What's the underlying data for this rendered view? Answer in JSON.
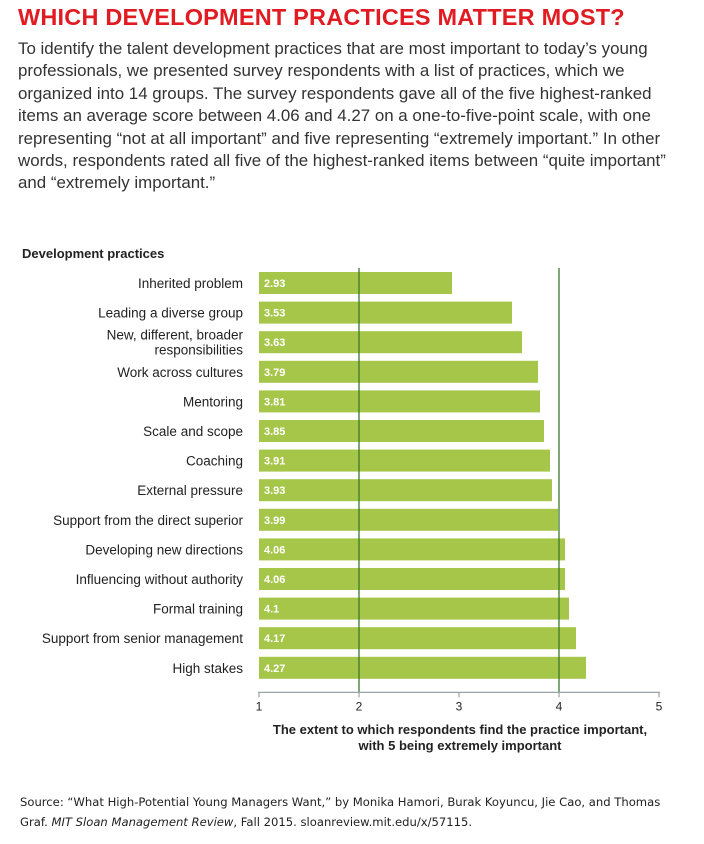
{
  "title": "WHICH DEVELOPMENT PRACTICES MATTER MOST?",
  "intro": "To identify the talent development practices that are most important to today’s young professionals, we presented survey respondents with a list of practices, which we organized into 14 groups. The survey respondents gave all of the five highest-ranked items an average score between 4.06 and 4.27 on a one-to-five-point scale, with one representing “not at all important” and five representing “extremely important.” In other words, respondents rated all five of the highest-ranked items between “quite important” and “extremely important.”",
  "source": {
    "prefix": "Source: “What High-Potential Young Managers Want,” by Monika Hamori, Burak Koyuncu, Jie Cao, and Thomas Graf. ",
    "journal": "MIT Sloan Management Review",
    "suffix": ", Fall 2015. sloanreview.mit.edu/x/57115."
  },
  "colors": {
    "title": "#e11b22",
    "bar": "#a6c64a",
    "gridline": "#3c7a2a",
    "axis": "#9aa3a8"
  },
  "chart_data": {
    "type": "bar",
    "orientation": "horizontal",
    "ylabel": "Development practices",
    "xlabel_lines": [
      "The extent to which respondents find the practice important,",
      "with 5 being extremely important"
    ],
    "xlim": [
      1,
      5
    ],
    "xticks": [
      1,
      2,
      3,
      4,
      5
    ],
    "gridlines_at": [
      2,
      4
    ],
    "categories": [
      [
        "Inherited problem"
      ],
      [
        "Leading a diverse group"
      ],
      [
        "New, different, broader",
        "responsibilities"
      ],
      [
        "Work across cultures"
      ],
      [
        "Mentoring"
      ],
      [
        "Scale and scope"
      ],
      [
        "Coaching"
      ],
      [
        "External pressure"
      ],
      [
        "Support from the direct superior"
      ],
      [
        "Developing new directions"
      ],
      [
        "Influencing without authority"
      ],
      [
        "Formal training"
      ],
      [
        "Support from senior management"
      ],
      [
        "High stakes"
      ]
    ],
    "values": [
      2.93,
      3.53,
      3.63,
      3.79,
      3.81,
      3.85,
      3.91,
      3.93,
      3.99,
      4.06,
      4.06,
      4.1,
      4.17,
      4.27
    ],
    "value_labels": [
      "2.93",
      "3.53",
      "3.63",
      "3.79",
      "3.81",
      "3.85",
      "3.91",
      "3.93",
      "3.99",
      "4.06",
      "4.06",
      "4.1",
      "4.17",
      "4.27"
    ]
  }
}
